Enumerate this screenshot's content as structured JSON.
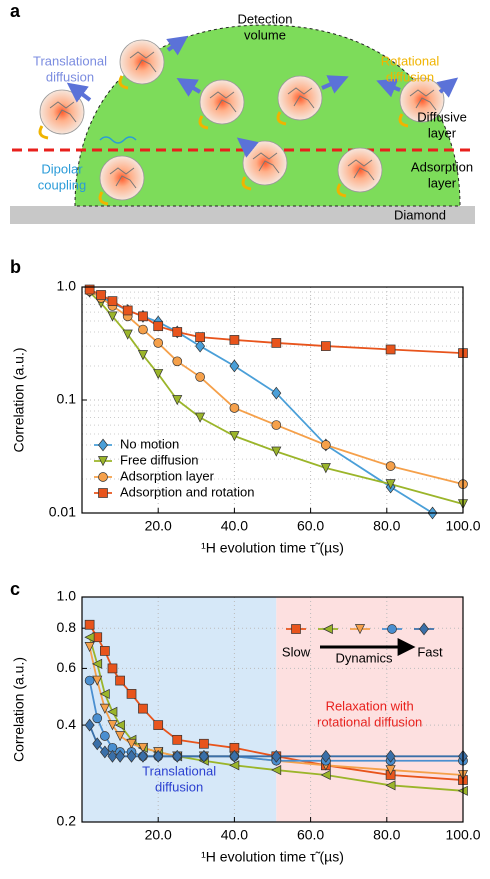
{
  "diagram": {
    "panel_label": "a",
    "detection_volume": [
      "Detection",
      "volume"
    ],
    "translational": [
      "Translational",
      "diffusion"
    ],
    "rotational": [
      "Rotational",
      "diffusion"
    ],
    "diffusive_layer": [
      "Diffusive",
      "layer"
    ],
    "dipolar": [
      "Dipolar",
      "coupling"
    ],
    "adsorption_layer": [
      "Adsorption",
      "layer"
    ],
    "diamond": "Diamond"
  },
  "chart_data": [
    {
      "type": "line",
      "panel_label": "b",
      "x_label": "¹H evolution time τ̃ (µs)",
      "y_label": "Correlation (a.u.)",
      "log_y": true,
      "grid": true,
      "legend": "lower left",
      "xlim": [
        0,
        100
      ],
      "ylim": [
        0.01,
        1
      ],
      "xticks": [
        {
          "value": 20,
          "label": "20.0"
        },
        {
          "value": 40,
          "label": "40.0"
        },
        {
          "value": 60,
          "label": "60.0"
        },
        {
          "value": 80,
          "label": "80.0"
        },
        {
          "value": 100,
          "label": "100.0"
        }
      ],
      "yticks": [
        0.01,
        0.1,
        {
          "value": 1,
          "label": "1.0"
        }
      ],
      "series": [
        {
          "name": "No motion",
          "color": "#4a9fd8",
          "marker": "diamond",
          "x": [
            2,
            5,
            8,
            12,
            16,
            20,
            25,
            31,
            40,
            51,
            64,
            81,
            92
          ],
          "values": [
            0.92,
            0.82,
            0.72,
            0.62,
            0.55,
            0.49,
            0.4,
            0.3,
            0.2,
            0.115,
            0.04,
            0.017,
            0.01
          ]
        },
        {
          "name": "Free diffusion",
          "color": "#9bb52a",
          "marker": "triangle-down",
          "x": [
            2,
            5,
            8,
            12,
            16,
            20,
            25,
            31,
            40,
            51,
            64,
            81,
            100
          ],
          "values": [
            0.9,
            0.72,
            0.55,
            0.38,
            0.25,
            0.17,
            0.1,
            0.07,
            0.048,
            0.035,
            0.025,
            0.018,
            0.012
          ]
        },
        {
          "name": "Adsorption layer",
          "color": "#f5a04a",
          "marker": "circle",
          "x": [
            2,
            5,
            8,
            12,
            16,
            20,
            25,
            31,
            40,
            51,
            64,
            81,
            100
          ],
          "values": [
            0.92,
            0.8,
            0.68,
            0.55,
            0.42,
            0.32,
            0.22,
            0.16,
            0.085,
            0.06,
            0.04,
            0.026,
            0.018
          ]
        },
        {
          "name": "Adsorption and rotation",
          "color": "#e8541c",
          "marker": "square",
          "x": [
            2,
            5,
            8,
            12,
            16,
            20,
            25,
            31,
            40,
            51,
            64,
            81,
            100
          ],
          "values": [
            0.95,
            0.85,
            0.75,
            0.62,
            0.55,
            0.45,
            0.4,
            0.36,
            0.34,
            0.32,
            0.3,
            0.28,
            0.26
          ]
        }
      ]
    },
    {
      "type": "line",
      "panel_label": "c",
      "x_label": "¹H evolution time τ̃ (µs)",
      "y_label": "Correlation (a.u.)",
      "log_y": true,
      "grid": true,
      "xlim": [
        0,
        100
      ],
      "ylim": [
        0.2,
        1
      ],
      "xticks": [
        {
          "value": 20,
          "label": "20.0"
        },
        {
          "value": 40,
          "label": "40.0"
        },
        {
          "value": 60,
          "label": "60.0"
        },
        {
          "value": 80,
          "label": "80.0"
        },
        {
          "value": 100,
          "label": "100.0"
        }
      ],
      "yticks": [
        0.2,
        0.4,
        0.6,
        0.8,
        {
          "value": 1,
          "label": "1.0"
        }
      ],
      "regions": [
        {
          "from": 0,
          "to": 51,
          "color": "#d6e8f8",
          "text_color": "#2a3fd0",
          "label": [
            "Translational",
            "diffusion"
          ]
        },
        {
          "from": 51,
          "to": 100,
          "color": "#fde0e0",
          "text_color": "#e8201c",
          "label": [
            "Relaxation with",
            "rotational diffusion"
          ]
        }
      ],
      "legend_texts": {
        "slow": "Slow",
        "dynamics": "Dynamics",
        "fast": "Fast"
      },
      "series": [
        {
          "color": "#e8541c",
          "marker": "square",
          "x": [
            2,
            4,
            6,
            8,
            10,
            13,
            16,
            20,
            25,
            32,
            40,
            51,
            64,
            81,
            100
          ],
          "values": [
            0.82,
            0.75,
            0.68,
            0.6,
            0.55,
            0.5,
            0.45,
            0.4,
            0.36,
            0.35,
            0.34,
            0.32,
            0.3,
            0.28,
            0.27
          ]
        },
        {
          "color": "#9bb52a",
          "marker": "triangle-left",
          "x": [
            2,
            4,
            6,
            8,
            10,
            13,
            16,
            20,
            25,
            32,
            40,
            51,
            64,
            81,
            100
          ],
          "values": [
            0.75,
            0.62,
            0.5,
            0.44,
            0.4,
            0.36,
            0.34,
            0.33,
            0.32,
            0.31,
            0.3,
            0.29,
            0.28,
            0.26,
            0.25
          ]
        },
        {
          "color": "#f5a04a",
          "marker": "triangle-down",
          "x": [
            2,
            4,
            6,
            8,
            10,
            13,
            16,
            20,
            25,
            32,
            40,
            51,
            64,
            81,
            100
          ],
          "values": [
            0.7,
            0.55,
            0.45,
            0.4,
            0.37,
            0.35,
            0.34,
            0.33,
            0.32,
            0.32,
            0.32,
            0.31,
            0.3,
            0.29,
            0.28
          ]
        },
        {
          "color": "#4a8fd0",
          "marker": "circle",
          "x": [
            2,
            4,
            6,
            8,
            10,
            13,
            16,
            20,
            25,
            32,
            40,
            51,
            64,
            81,
            100
          ],
          "values": [
            0.55,
            0.42,
            0.37,
            0.34,
            0.33,
            0.33,
            0.32,
            0.32,
            0.32,
            0.32,
            0.32,
            0.31,
            0.31,
            0.31,
            0.31
          ]
        },
        {
          "color": "#3a6fa8",
          "marker": "diamond",
          "x": [
            2,
            4,
            6,
            8,
            10,
            13,
            16,
            20,
            25,
            32,
            40,
            51,
            64,
            81,
            100
          ],
          "values": [
            0.4,
            0.35,
            0.33,
            0.32,
            0.32,
            0.32,
            0.32,
            0.32,
            0.32,
            0.32,
            0.32,
            0.32,
            0.32,
            0.32,
            0.32
          ]
        }
      ]
    }
  ]
}
